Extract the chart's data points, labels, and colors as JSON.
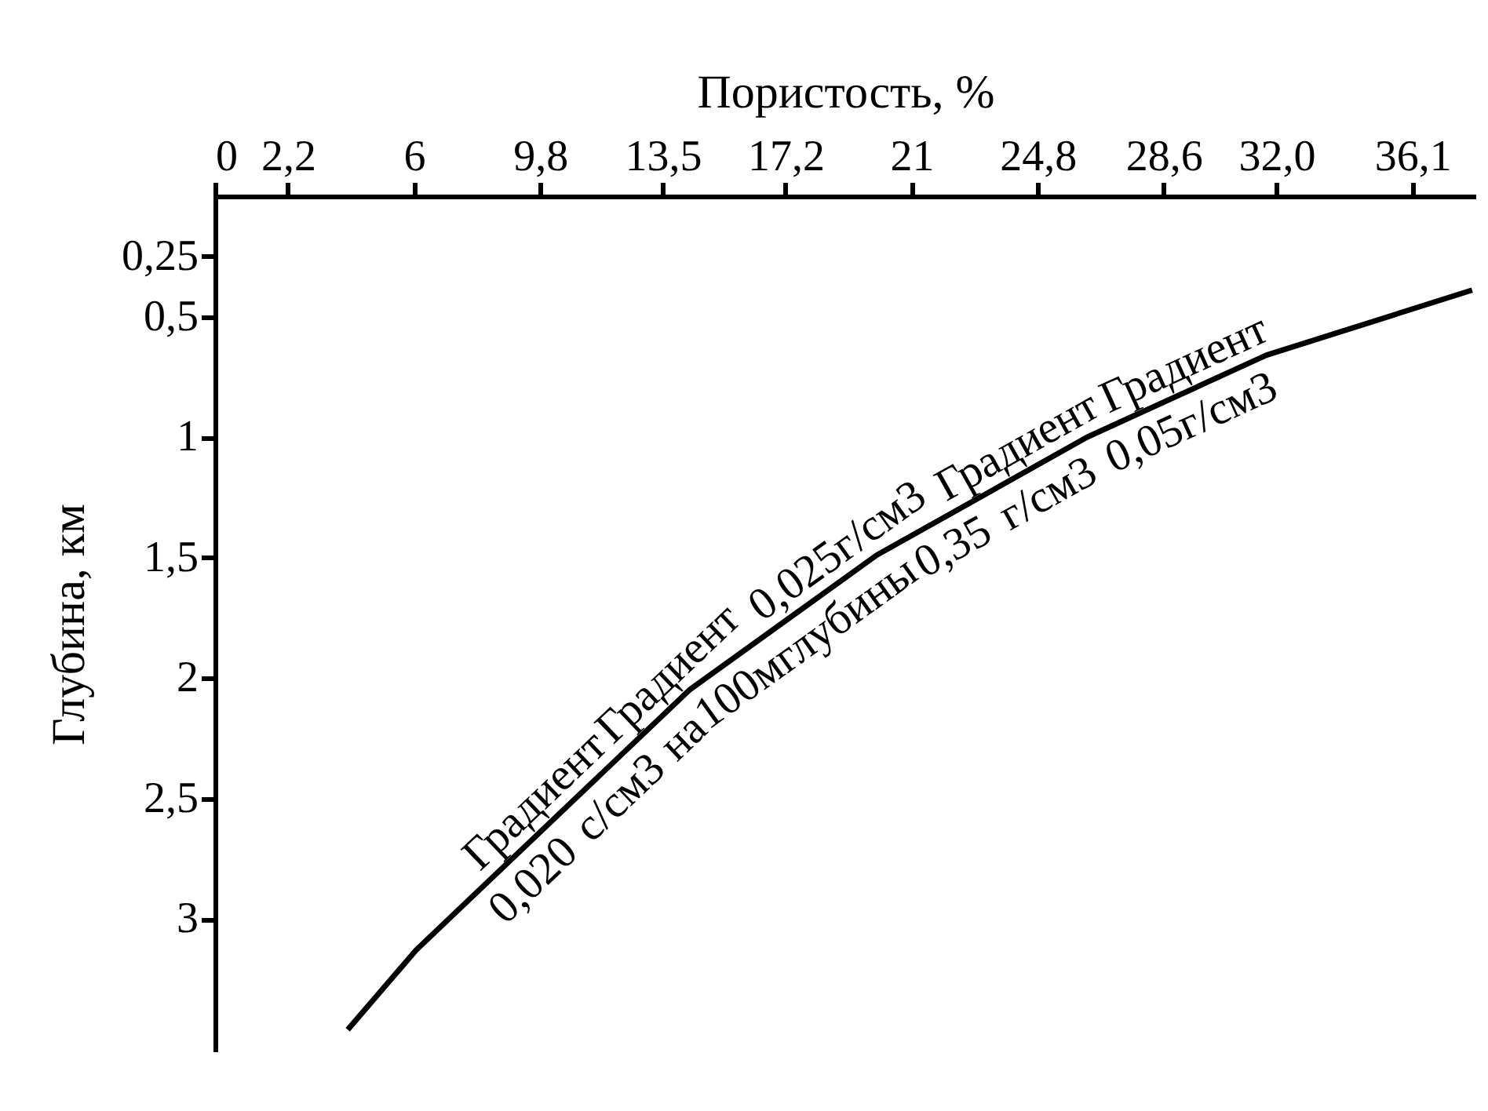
{
  "chart_data": {
    "type": "line",
    "xlabel": "Пористость, %",
    "ylabel": "Глубина, км",
    "x": [
      4.0,
      6.06,
      14.3,
      19.95,
      26.3,
      31.7,
      37.9
    ],
    "series": [
      {
        "color": "#000000",
        "values": [
          3.46,
          3.13,
          2.05,
          1.49,
          1.0,
          0.66,
          0.39
        ]
      }
    ],
    "xlim": [
      0,
      38
    ],
    "ylim": [
      3.55,
      0
    ],
    "xticks": [
      0,
      {
        "value": 2.2,
        "label": "2,2"
      },
      6,
      {
        "value": 9.8,
        "label": "9,8"
      },
      {
        "value": 13.5,
        "label": "13,5"
      },
      {
        "value": 17.2,
        "label": "17,2"
      },
      21,
      {
        "value": 24.8,
        "label": "24,8"
      },
      {
        "value": 28.6,
        "label": "28,6"
      },
      {
        "value": 32.0,
        "label": "32,0"
      },
      {
        "value": 36.1,
        "label": "36,1"
      }
    ],
    "yticks": [
      {
        "value": 0.25,
        "label": "0,25"
      },
      {
        "value": 0.5,
        "label": "0,5"
      },
      1,
      {
        "value": 1.5,
        "label": "1,5"
      },
      2,
      {
        "value": 2.5,
        "label": "2,5"
      },
      3
    ],
    "annotations": [
      "Градиент Градиент 0,025г/см3 Градиент Градиент",
      "0,020 с/см3 на 100м глубины 0,35 г/см3 0,05г/см3"
    ],
    "grid": false,
    "marker": "none",
    "line_style": "solid"
  }
}
